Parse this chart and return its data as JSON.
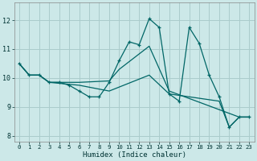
{
  "xlabel": "Humidex (Indice chaleur)",
  "bg_color": "#cce8e8",
  "grid_color": "#aacccc",
  "line_color": "#006666",
  "xlim": [
    -0.5,
    23.5
  ],
  "ylim": [
    7.8,
    12.6
  ],
  "yticks": [
    8,
    9,
    10,
    11,
    12
  ],
  "xticks": [
    0,
    1,
    2,
    3,
    4,
    5,
    6,
    7,
    8,
    9,
    10,
    11,
    12,
    13,
    14,
    15,
    16,
    17,
    18,
    19,
    20,
    21,
    22,
    23
  ],
  "series1": [
    [
      0,
      10.5
    ],
    [
      1,
      10.1
    ],
    [
      2,
      10.1
    ],
    [
      3,
      9.85
    ],
    [
      4,
      9.85
    ],
    [
      5,
      9.75
    ],
    [
      6,
      9.55
    ],
    [
      7,
      9.35
    ],
    [
      8,
      9.35
    ],
    [
      9,
      9.85
    ],
    [
      10,
      10.6
    ],
    [
      11,
      11.25
    ],
    [
      12,
      11.15
    ],
    [
      13,
      12.05
    ],
    [
      14,
      11.75
    ],
    [
      15,
      9.45
    ],
    [
      16,
      9.2
    ],
    [
      17,
      11.75
    ],
    [
      18,
      11.2
    ],
    [
      19,
      10.1
    ],
    [
      20,
      9.35
    ],
    [
      21,
      8.3
    ],
    [
      22,
      8.65
    ],
    [
      23,
      8.65
    ]
  ],
  "series2": [
    [
      0,
      10.5
    ],
    [
      1,
      10.1
    ],
    [
      2,
      10.1
    ],
    [
      3,
      9.85
    ],
    [
      6,
      9.85
    ],
    [
      9,
      9.9
    ],
    [
      10,
      10.3
    ],
    [
      13,
      11.1
    ],
    [
      15,
      9.55
    ],
    [
      22,
      8.65
    ],
    [
      23,
      8.65
    ]
  ],
  "series3": [
    [
      0,
      10.5
    ],
    [
      1,
      10.1
    ],
    [
      2,
      10.1
    ],
    [
      3,
      9.85
    ],
    [
      6,
      9.75
    ],
    [
      9,
      9.55
    ],
    [
      13,
      10.1
    ],
    [
      15,
      9.45
    ],
    [
      20,
      9.2
    ],
    [
      21,
      8.3
    ],
    [
      22,
      8.65
    ],
    [
      23,
      8.65
    ]
  ]
}
